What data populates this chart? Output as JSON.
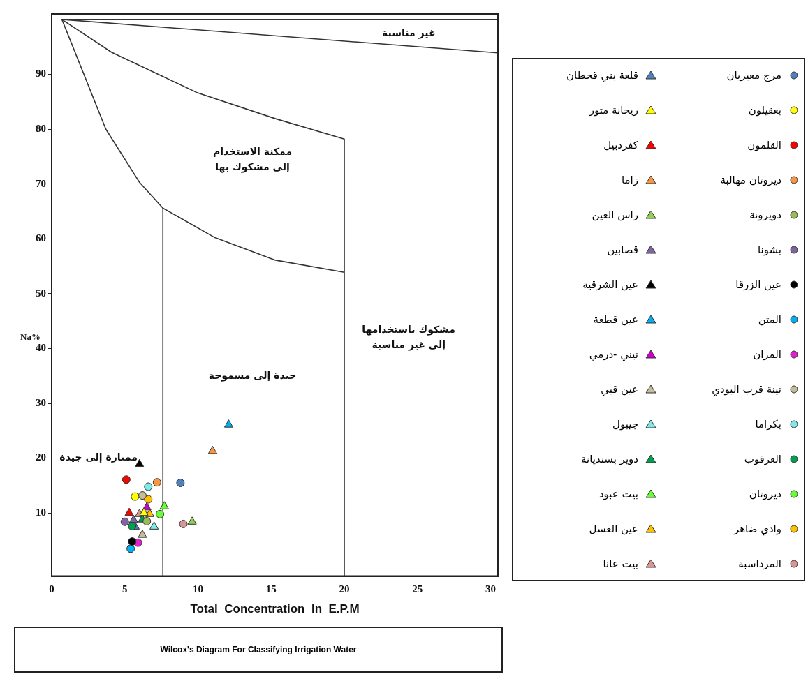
{
  "chart_data": {
    "type": "scatter",
    "title": "Wilcox's Diagram For Classifying Irrigation Water",
    "xlabel": "Total  Concentration  In  E.P.M",
    "ylabel": "Na%",
    "xlim": [
      0,
      30.5
    ],
    "ylim": [
      -1.5,
      101
    ],
    "xticks": [
      0,
      5,
      10,
      15,
      20,
      25,
      30
    ],
    "yticks": [
      10,
      20,
      30,
      40,
      50,
      60,
      70,
      80,
      90
    ],
    "legend": "right",
    "series": [
      {
        "name": "مرج معيربان",
        "marker": "circle",
        "color": "#4f81bd",
        "x": [
          8.8
        ],
        "values": [
          15.5
        ]
      },
      {
        "name": "قلعة بني قحطان",
        "marker": "triangle",
        "color": "#4f81bd",
        "x": [
          5.7
        ],
        "values": [
          7.5
        ]
      },
      {
        "name": "بعقيلون",
        "marker": "circle",
        "color": "#ffff00",
        "x": [
          5.7
        ],
        "values": [
          13.0
        ]
      },
      {
        "name": "ريحانة متور",
        "marker": "triangle",
        "color": "#ffff00",
        "x": [
          6.3
        ],
        "values": [
          10.0
        ]
      },
      {
        "name": "القلمون",
        "marker": "circle",
        "color": "#ff0000",
        "x": [
          5.1
        ],
        "values": [
          16.1
        ]
      },
      {
        "name": "كفردبيل",
        "marker": "triangle",
        "color": "#ff0000",
        "x": [
          5.3
        ],
        "values": [
          10.0
        ]
      },
      {
        "name": "ديروتان مهالبة",
        "marker": "circle",
        "color": "#f79646",
        "x": [
          7.2
        ],
        "values": [
          15.6
        ]
      },
      {
        "name": "زاما",
        "marker": "triangle",
        "color": "#f79646",
        "x": [
          11.0
        ],
        "values": [
          21.3
        ]
      },
      {
        "name": "دويرونة",
        "marker": "circle",
        "color": "#9bbb59",
        "x": [
          6.5
        ],
        "values": [
          8.5
        ]
      },
      {
        "name": "راس العين",
        "marker": "triangle",
        "color": "#92d050",
        "x": [
          9.6
        ],
        "values": [
          8.4
        ]
      },
      {
        "name": "بشونا",
        "marker": "circle",
        "color": "#8064a2",
        "x": [
          5.0
        ],
        "values": [
          8.4
        ]
      },
      {
        "name": "قصابين",
        "marker": "triangle",
        "color": "#8064a2",
        "x": [
          5.6
        ],
        "values": [
          8.7
        ]
      },
      {
        "name": "عين الزرقا",
        "marker": "circle",
        "color": "#000000",
        "x": [
          5.5
        ],
        "values": [
          4.8
        ]
      },
      {
        "name": "عين الشرقية",
        "marker": "triangle",
        "color": "#000000",
        "x": [
          6.0
        ],
        "values": [
          18.9
        ]
      },
      {
        "name": "المتن",
        "marker": "circle",
        "color": "#00b0f0",
        "x": [
          5.4
        ],
        "values": [
          3.5
        ]
      },
      {
        "name": "عين قطعة",
        "marker": "triangle",
        "color": "#00b0f0",
        "x": [
          12.1
        ],
        "values": [
          26.1
        ]
      },
      {
        "name": "المران",
        "marker": "circle",
        "color": "#dd22cc",
        "x": [
          5.9
        ],
        "values": [
          4.6
        ]
      },
      {
        "name": "نيني -درمي",
        "marker": "triangle",
        "color": "#cc00cc",
        "x": [
          6.5
        ],
        "values": [
          11.0
        ]
      },
      {
        "name": "نينة قرب البودي",
        "marker": "circle",
        "color": "#c4bd97",
        "x": [
          6.2
        ],
        "values": [
          13.2
        ]
      },
      {
        "name": "عين قبي",
        "marker": "triangle",
        "color": "#c4bd97",
        "x": [
          6.2
        ],
        "values": [
          6.0
        ]
      },
      {
        "name": "بكراما",
        "marker": "circle",
        "color": "#7fe8e8",
        "x": [
          6.6
        ],
        "values": [
          14.8
        ]
      },
      {
        "name": "جيبول",
        "marker": "triangle",
        "color": "#7fe8e8",
        "x": [
          7.0
        ],
        "values": [
          7.5
        ]
      },
      {
        "name": "العرقوب",
        "marker": "circle",
        "color": "#00a050",
        "x": [
          5.5
        ],
        "values": [
          7.6
        ]
      },
      {
        "name": "دوير بسنديانة",
        "marker": "triangle",
        "color": "#00a050",
        "x": [
          6.2
        ],
        "values": [
          8.8
        ]
      },
      {
        "name": "ديروتان",
        "marker": "circle",
        "color": "#66ff33",
        "x": [
          7.4
        ],
        "values": [
          9.8
        ]
      },
      {
        "name": "بيت عبود",
        "marker": "triangle",
        "color": "#66ff33",
        "x": [
          7.7
        ],
        "values": [
          11.2
        ]
      },
      {
        "name": "وادي ضاهر",
        "marker": "circle",
        "color": "#ffc000",
        "x": [
          6.6
        ],
        "values": [
          12.5
        ]
      },
      {
        "name": "عين العسل",
        "marker": "triangle",
        "color": "#ffc000",
        "x": [
          6.7
        ],
        "values": [
          9.8
        ]
      },
      {
        "name": "المرداسبة",
        "marker": "circle",
        "color": "#d99594",
        "x": [
          9.0
        ],
        "values": [
          8.0
        ]
      },
      {
        "name": "بيت عانا",
        "marker": "triangle",
        "color": "#d99594",
        "x": [
          6.0
        ],
        "values": [
          9.8
        ]
      },
      {
        "type": "line",
        "marker": "none",
        "color": "#333333",
        "x": [
          30.5,
          0.7,
          30.5
        ],
        "values": [
          100,
          100,
          93.9
        ]
      },
      {
        "type": "line",
        "marker": "none",
        "color": "#333333",
        "x": [
          0.7,
          4.1,
          9.9,
          15.3,
          20,
          20
        ],
        "values": [
          100,
          94,
          86.7,
          81.9,
          78.2,
          -1.5
        ]
      },
      {
        "type": "line",
        "marker": "none",
        "color": "#333333",
        "x": [
          0.7,
          3.7,
          6.0,
          7.6,
          11.1,
          15.3,
          20
        ],
        "values": [
          100,
          80,
          70.3,
          65.6,
          60.3,
          56.1,
          53.9
        ]
      },
      {
        "type": "line",
        "marker": "none",
        "color": "#333333",
        "x": [
          7.6,
          7.6
        ],
        "values": [
          65.6,
          -1.5
        ]
      }
    ],
    "annotations": [
      "غير مناسبة",
      "ممكنة الاستخدام\nإلى مشكوك بها",
      "جيدة إلى مسموحة",
      "مشكوك باستخدامها\nإلى غير مناسبة",
      "ممتازة إلى جيدة"
    ]
  }
}
